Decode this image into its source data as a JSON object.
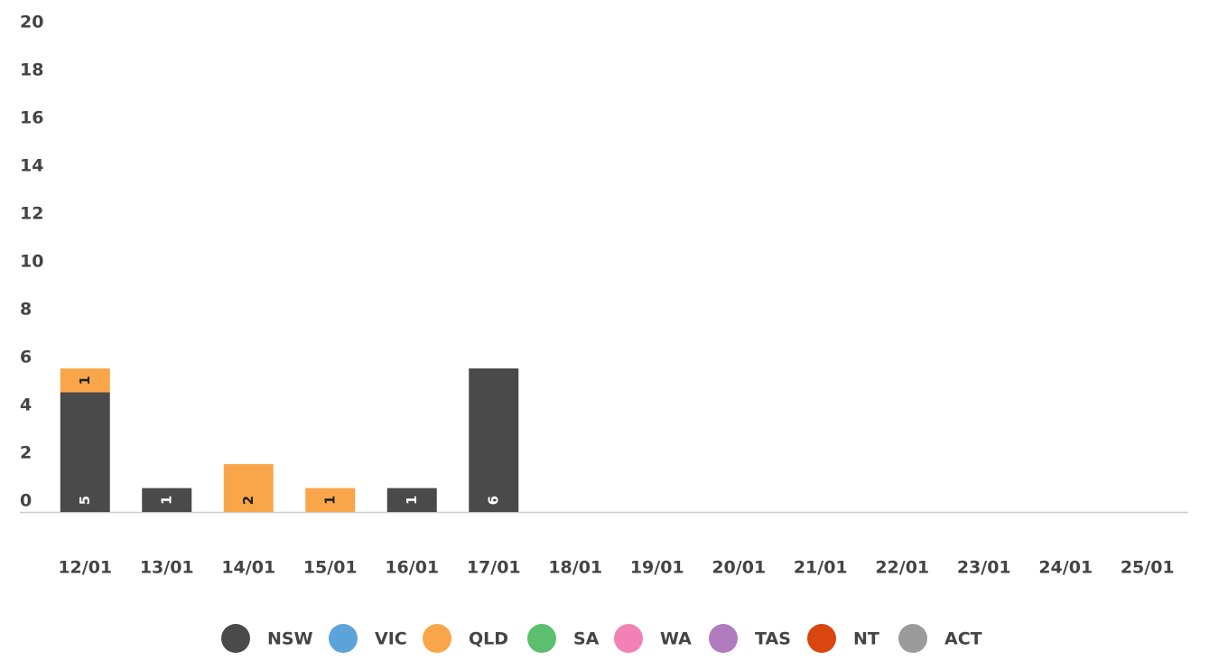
{
  "chart_data": {
    "type": "bar",
    "stacked": true,
    "categories": [
      "12/01",
      "13/01",
      "14/01",
      "15/01",
      "16/01",
      "17/01",
      "18/01",
      "19/01",
      "20/01",
      "21/01",
      "22/01",
      "23/01",
      "24/01",
      "25/01"
    ],
    "series": [
      {
        "name": "NSW",
        "color": "#4a4a4a",
        "values": [
          5,
          1,
          0,
          0,
          1,
          6,
          0,
          0,
          0,
          0,
          0,
          0,
          0,
          0
        ]
      },
      {
        "name": "VIC",
        "color": "#5ba3d9",
        "values": [
          0,
          0,
          0,
          0,
          0,
          0,
          0,
          0,
          0,
          0,
          0,
          0,
          0,
          0
        ]
      },
      {
        "name": "QLD",
        "color": "#f9a54a",
        "values": [
          1,
          0,
          2,
          1,
          0,
          0,
          0,
          0,
          0,
          0,
          0,
          0,
          0,
          0
        ]
      },
      {
        "name": "SA",
        "color": "#5cbf6e",
        "values": [
          0,
          0,
          0,
          0,
          0,
          0,
          0,
          0,
          0,
          0,
          0,
          0,
          0,
          0
        ]
      },
      {
        "name": "WA",
        "color": "#f281b5",
        "values": [
          0,
          0,
          0,
          0,
          0,
          0,
          0,
          0,
          0,
          0,
          0,
          0,
          0,
          0
        ]
      },
      {
        "name": "TAS",
        "color": "#b07cbd",
        "values": [
          0,
          0,
          0,
          0,
          0,
          0,
          0,
          0,
          0,
          0,
          0,
          0,
          0,
          0
        ]
      },
      {
        "name": "NT",
        "color": "#d9460f",
        "values": [
          0,
          0,
          0,
          0,
          0,
          0,
          0,
          0,
          0,
          0,
          0,
          0,
          0,
          0
        ]
      },
      {
        "name": "ACT",
        "color": "#9b9b9b",
        "values": [
          0,
          0,
          0,
          0,
          0,
          0,
          0,
          0,
          0,
          0,
          0,
          0,
          0,
          0
        ]
      }
    ],
    "ylim": [
      0,
      20
    ],
    "yticks": [
      0,
      2,
      4,
      6,
      8,
      10,
      12,
      14,
      16,
      18,
      20
    ],
    "grid": false,
    "legend": "bottom"
  }
}
